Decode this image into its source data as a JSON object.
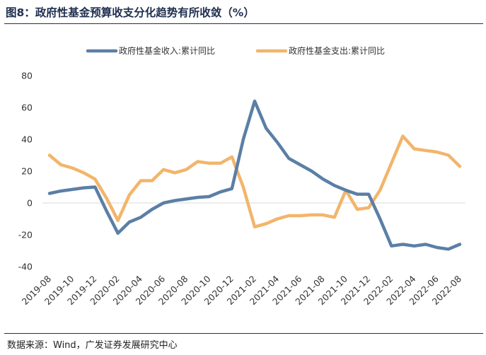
{
  "figure_title": "图8：政府性基金预算收支分化趋势有所收敛（%）",
  "source_note": "数据来源：Wind，广发证券发展研究中心",
  "chart_data": {
    "type": "line",
    "title": "",
    "xlabel": "",
    "ylabel": "",
    "ylim": [
      -40,
      80
    ],
    "yticks": [
      -40,
      -20,
      0,
      20,
      40,
      60,
      80
    ],
    "grid": false,
    "legend_position": "top",
    "x": [
      "2019-08",
      "2019-09",
      "2019-10",
      "2019-11",
      "2019-12",
      "2020-01",
      "2020-02",
      "2020-03",
      "2020-04",
      "2020-05",
      "2020-06",
      "2020-07",
      "2020-08",
      "2020-09",
      "2020-10",
      "2020-11",
      "2020-12",
      "2021-01",
      "2021-02",
      "2021-03",
      "2021-04",
      "2021-05",
      "2021-06",
      "2021-07",
      "2021-08",
      "2021-09",
      "2021-10",
      "2021-11",
      "2021-12",
      "2022-01",
      "2022-02",
      "2022-03",
      "2022-04",
      "2022-05",
      "2022-06",
      "2022-07",
      "2022-08"
    ],
    "xticks": [
      "2019-08",
      "2019-10",
      "2019-12",
      "2020-02",
      "2020-04",
      "2020-06",
      "2020-08",
      "2020-10",
      "2020-12",
      "2021-02",
      "2021-04",
      "2021-06",
      "2021-08",
      "2021-10",
      "2021-12",
      "2022-02",
      "2022-04",
      "2022-06",
      "2022-08"
    ],
    "series": [
      {
        "name": "政府性基金收入:累计同比",
        "color": "#5b7fa6",
        "values": [
          6,
          7.5,
          8.5,
          9.5,
          10,
          -5,
          -19,
          -12,
          -9,
          -4,
          0,
          1.5,
          2.5,
          3.5,
          4,
          7,
          9,
          40,
          64,
          47,
          38,
          28,
          24,
          20,
          15,
          11,
          8,
          5.5,
          5.5,
          -10,
          -27,
          -26,
          -27,
          -26,
          -28,
          -29,
          -26
        ]
      },
      {
        "name": "政府性基金支出:累计同比",
        "color": "#f2b56b",
        "values": [
          30,
          24,
          22,
          19,
          15,
          3,
          -11,
          5,
          14,
          14,
          21,
          19,
          21,
          26,
          25,
          25,
          29,
          10,
          -15,
          -13,
          -10,
          -8,
          -8,
          -7.5,
          -7.5,
          -9,
          8,
          -4,
          -3,
          8,
          25,
          42,
          34,
          33,
          32,
          30,
          23
        ]
      }
    ]
  }
}
